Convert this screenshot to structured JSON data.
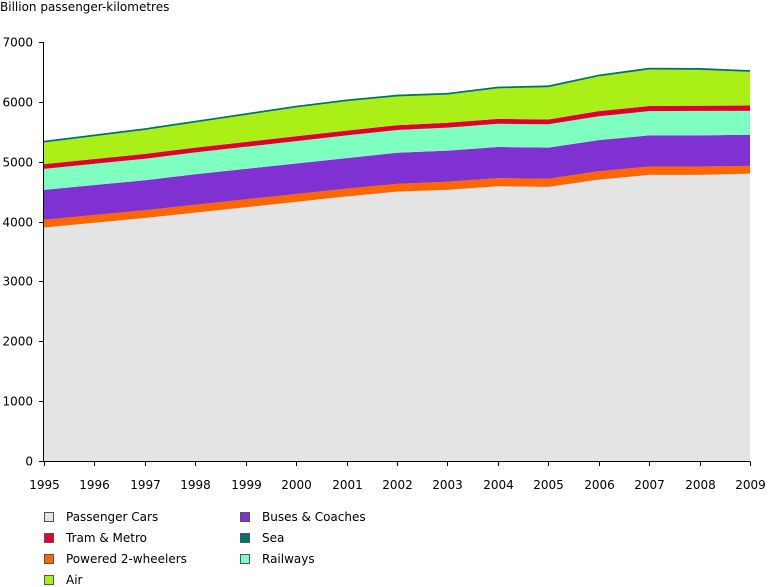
{
  "chart_data": {
    "type": "area",
    "stacked": true,
    "title": "",
    "xlabel": "",
    "ylabel": "Billion passenger-kilometres",
    "ylim": [
      0,
      7000
    ],
    "yticks": [
      0,
      1000,
      2000,
      3000,
      4000,
      5000,
      6000,
      7000
    ],
    "categories": [
      "1995",
      "1996",
      "1997",
      "1998",
      "1999",
      "2000",
      "2001",
      "2002",
      "2003",
      "2004",
      "2005",
      "2006",
      "2007",
      "2008",
      "2009"
    ],
    "grid": false,
    "legend_position": "bottom",
    "series": [
      {
        "name": "Passenger Cars",
        "color": "#e4e4e4",
        "values": [
          3900,
          3980,
          4060,
          4150,
          4240,
          4330,
          4420,
          4500,
          4530,
          4590,
          4580,
          4700,
          4780,
          4780,
          4800
        ]
      },
      {
        "name": "Powered 2-wheelers",
        "color": "#ff6600",
        "values": [
          130,
          130,
          130,
          130,
          130,
          130,
          130,
          130,
          135,
          135,
          135,
          140,
          140,
          140,
          130
        ]
      },
      {
        "name": "Buses & Coaches",
        "color": "#7f32d1",
        "values": [
          500,
          500,
          500,
          510,
          510,
          510,
          510,
          520,
          520,
          520,
          520,
          520,
          520,
          520,
          520
        ]
      },
      {
        "name": "Railways",
        "color": "#7effc0",
        "values": [
          350,
          355,
          360,
          365,
          370,
          375,
          380,
          380,
          385,
          390,
          390,
          400,
          405,
          410,
          400
        ]
      },
      {
        "name": "Tram & Metro",
        "color": "#e0002e",
        "values": [
          80,
          80,
          80,
          80,
          80,
          80,
          80,
          80,
          80,
          80,
          80,
          85,
          85,
          85,
          90
        ]
      },
      {
        "name": "Air",
        "color": "#aaef18",
        "values": [
          360,
          380,
          400,
          420,
          450,
          480,
          490,
          480,
          470,
          510,
          540,
          580,
          610,
          600,
          560
        ]
      },
      {
        "name": "Sea",
        "color": "#00706a",
        "values": [
          30,
          30,
          30,
          30,
          30,
          30,
          30,
          30,
          30,
          30,
          30,
          30,
          30,
          30,
          30
        ]
      }
    ],
    "legend_order": [
      "Passenger Cars",
      "Buses & Coaches",
      "Tram & Metro",
      "Sea",
      "Powered 2-wheelers",
      "Railways",
      "Air"
    ]
  }
}
